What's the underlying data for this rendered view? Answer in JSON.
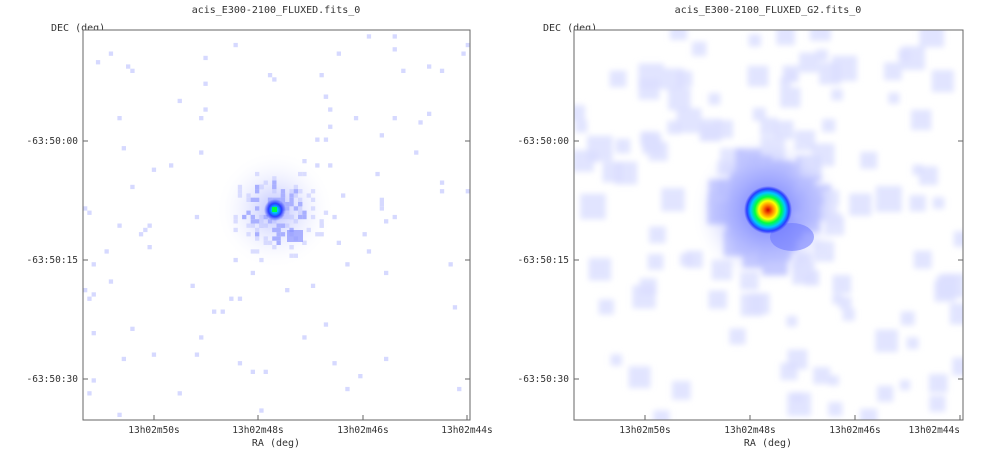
{
  "chart_data": [
    {
      "type": "heatmap",
      "title": "acis_E300-2100_FLUXED.fits_0",
      "xlabel": "RA (deg)",
      "ylabel": "DEC (deg)",
      "xticks": [
        "13h02m50s",
        "13h02m48s",
        "13h02m46s",
        "13h02m44s"
      ],
      "yticks": [
        "-63:50:00",
        "-63:50:15",
        "-63:50:30"
      ],
      "source": {
        "ra": "13h02m48.3s",
        "dec": "-63:50:09"
      },
      "colormap": [
        "#ffffff",
        "#d6d9ff",
        "#8a93ff",
        "#2a3cff",
        "#00c8ff",
        "#00ff40",
        "#ffff00",
        "#ff8000",
        "#cc0000"
      ],
      "smoothed": false,
      "grid": false
    },
    {
      "type": "heatmap",
      "title": "acis_E300-2100_FLUXED_G2.fits_0",
      "xlabel": "RA (deg)",
      "ylabel": "DEC (deg)",
      "xticks": [
        "13h02m50s",
        "13h02m48s",
        "13h02m46s",
        "13h02m44s"
      ],
      "yticks": [
        "-63:50:00",
        "-63:50:15",
        "-63:50:30"
      ],
      "source": {
        "ra": "13h02m48.3s",
        "dec": "-63:50:09"
      },
      "colormap": [
        "#ffffff",
        "#d6d9ff",
        "#8a93ff",
        "#2a3cff",
        "#00c8ff",
        "#00ff40",
        "#ffff00",
        "#ff8000",
        "#cc0000"
      ],
      "smoothed": true,
      "grid": false
    }
  ]
}
